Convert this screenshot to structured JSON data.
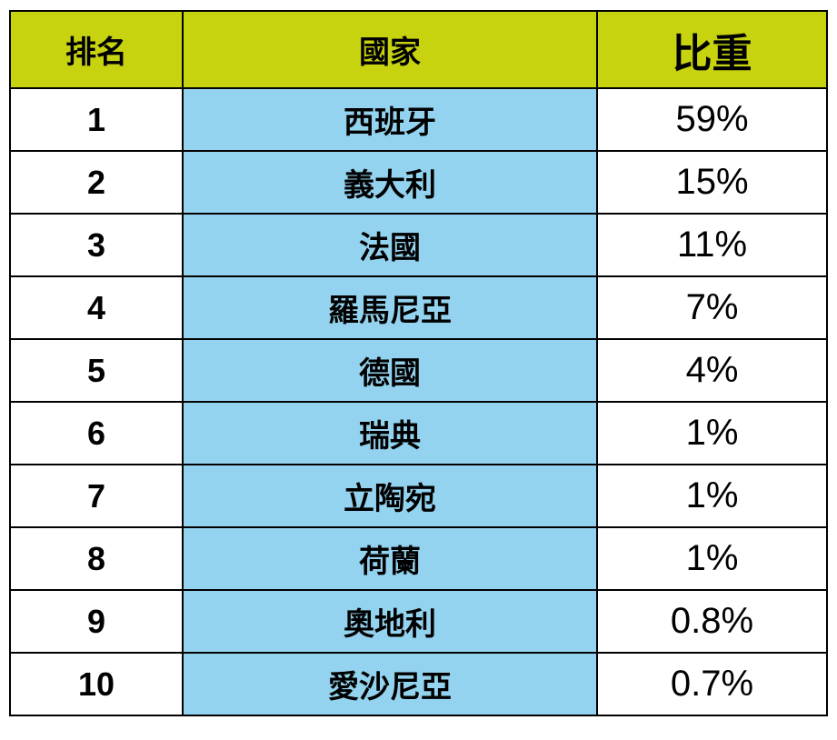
{
  "chart_data": {
    "type": "table",
    "columns": [
      "排名",
      "國家",
      "比重"
    ],
    "rows": [
      {
        "rank": "1",
        "country": "西班牙",
        "share": "59%",
        "share_value": 59
      },
      {
        "rank": "2",
        "country": "義大利",
        "share": "15%",
        "share_value": 15
      },
      {
        "rank": "3",
        "country": "法國",
        "share": "11%",
        "share_value": 11
      },
      {
        "rank": "4",
        "country": "羅馬尼亞",
        "share": "7%",
        "share_value": 7
      },
      {
        "rank": "5",
        "country": "德國",
        "share": "4%",
        "share_value": 4
      },
      {
        "rank": "6",
        "country": "瑞典",
        "share": "1%",
        "share_value": 1
      },
      {
        "rank": "7",
        "country": "立陶宛",
        "share": "1%",
        "share_value": 1
      },
      {
        "rank": "8",
        "country": "荷蘭",
        "share": "1%",
        "share_value": 1
      },
      {
        "rank": "9",
        "country": "奧地利",
        "share": "0.8%",
        "share_value": 0.8
      },
      {
        "rank": "10",
        "country": "愛沙尼亞",
        "share": "0.7%",
        "share_value": 0.7
      }
    ]
  },
  "colors": {
    "header_bg": "#c7d30f",
    "country_bg": "#94d3ef",
    "border": "#000000"
  }
}
